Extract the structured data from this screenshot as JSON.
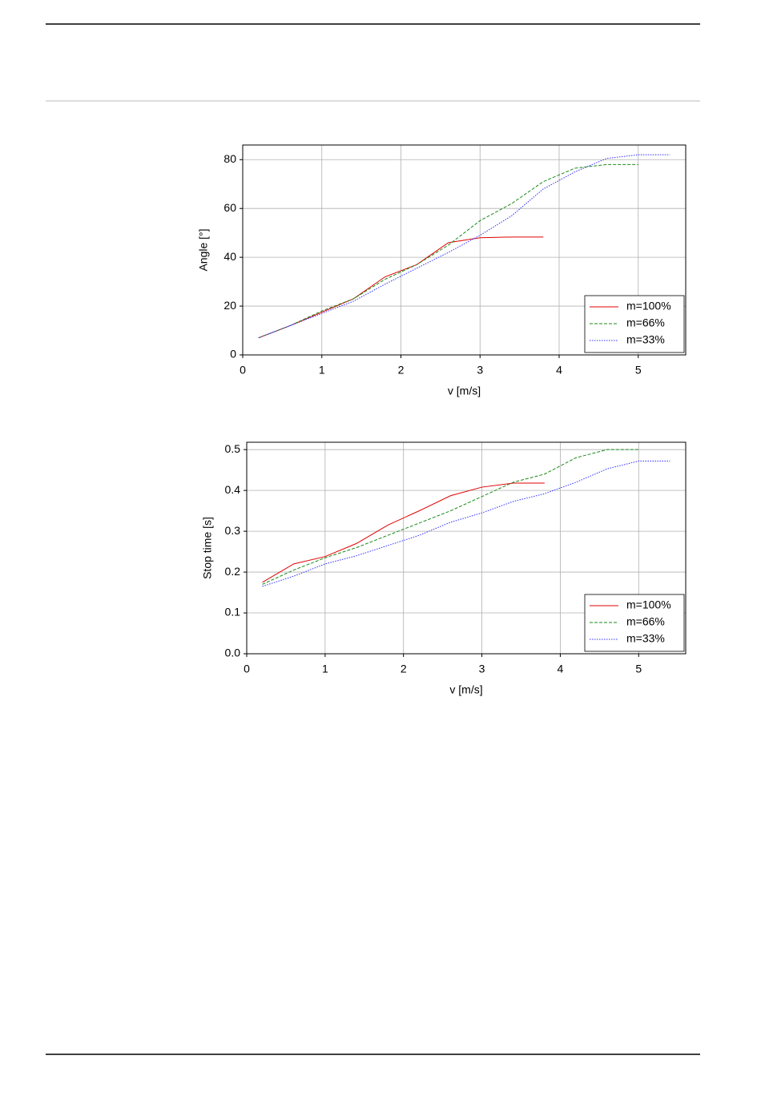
{
  "chart_data": [
    {
      "type": "line",
      "xlabel": "v [m/s]",
      "ylabel": "Angle [°]",
      "xlim": [
        0,
        5.6
      ],
      "ylim": [
        0,
        86
      ],
      "xticks": [
        0,
        1,
        2,
        3,
        4,
        5
      ],
      "yticks": [
        0,
        20,
        40,
        60,
        80
      ],
      "grid": true,
      "legend": "lower right",
      "series": [
        {
          "name": "m=100%",
          "color": "#e00000",
          "dash": "solid",
          "x": [
            0.2,
            0.6,
            1.0,
            1.4,
            1.8,
            2.2,
            2.6,
            3.0,
            3.4,
            3.8
          ],
          "values": [
            7,
            12,
            17.5,
            23,
            32,
            37,
            46,
            48,
            48.3,
            48.3
          ]
        },
        {
          "name": "m=66%",
          "color": "#1a8a1a",
          "dash": "dashed",
          "x": [
            0.2,
            0.6,
            1.0,
            1.4,
            1.8,
            2.2,
            2.6,
            3.0,
            3.4,
            3.8,
            4.2,
            4.6,
            5.0
          ],
          "values": [
            7,
            12,
            18,
            23,
            31,
            37,
            45,
            55,
            62,
            71,
            76.5,
            78,
            78
          ]
        },
        {
          "name": "m=33%",
          "color": "#3030ff",
          "dash": "dotted",
          "x": [
            0.2,
            0.6,
            1.0,
            1.4,
            1.8,
            2.2,
            2.6,
            3.0,
            3.4,
            3.8,
            4.2,
            4.6,
            5.0,
            5.4
          ],
          "values": [
            7,
            12,
            17,
            22,
            29,
            35.5,
            42,
            49,
            57,
            68,
            75,
            80.5,
            82,
            82
          ]
        }
      ]
    },
    {
      "type": "line",
      "xlabel": "v [m/s]",
      "ylabel": "Stop time [s]",
      "xlim": [
        0,
        5.6
      ],
      "ylim": [
        0,
        0.518
      ],
      "xticks": [
        0,
        1,
        2,
        3,
        4,
        5
      ],
      "yticks": [
        {
          "value": 0,
          "label": "0.0"
        },
        0.1,
        0.2,
        0.3,
        0.4,
        0.5
      ],
      "grid": true,
      "legend": "lower right",
      "series": [
        {
          "name": "m=100%",
          "color": "#e00000",
          "dash": "solid",
          "x": [
            0.2,
            0.6,
            1.0,
            1.4,
            1.8,
            2.2,
            2.6,
            3.0,
            3.4,
            3.8
          ],
          "values": [
            0.175,
            0.22,
            0.238,
            0.27,
            0.315,
            0.35,
            0.387,
            0.408,
            0.418,
            0.418
          ]
        },
        {
          "name": "m=66%",
          "color": "#1a8a1a",
          "dash": "dashed",
          "x": [
            0.2,
            0.6,
            1.0,
            1.4,
            1.8,
            2.2,
            2.6,
            3.0,
            3.4,
            3.8,
            4.2,
            4.6,
            5.0
          ],
          "values": [
            0.17,
            0.205,
            0.235,
            0.26,
            0.29,
            0.32,
            0.35,
            0.385,
            0.42,
            0.44,
            0.48,
            0.5,
            0.5
          ]
        },
        {
          "name": "m=33%",
          "color": "#3030ff",
          "dash": "dotted",
          "x": [
            0.2,
            0.6,
            1.0,
            1.4,
            1.8,
            2.2,
            2.6,
            3.0,
            3.4,
            3.8,
            4.2,
            4.6,
            5.0,
            5.4
          ],
          "values": [
            0.165,
            0.19,
            0.22,
            0.24,
            0.265,
            0.29,
            0.322,
            0.345,
            0.373,
            0.392,
            0.42,
            0.453,
            0.472,
            0.472
          ]
        }
      ]
    }
  ]
}
